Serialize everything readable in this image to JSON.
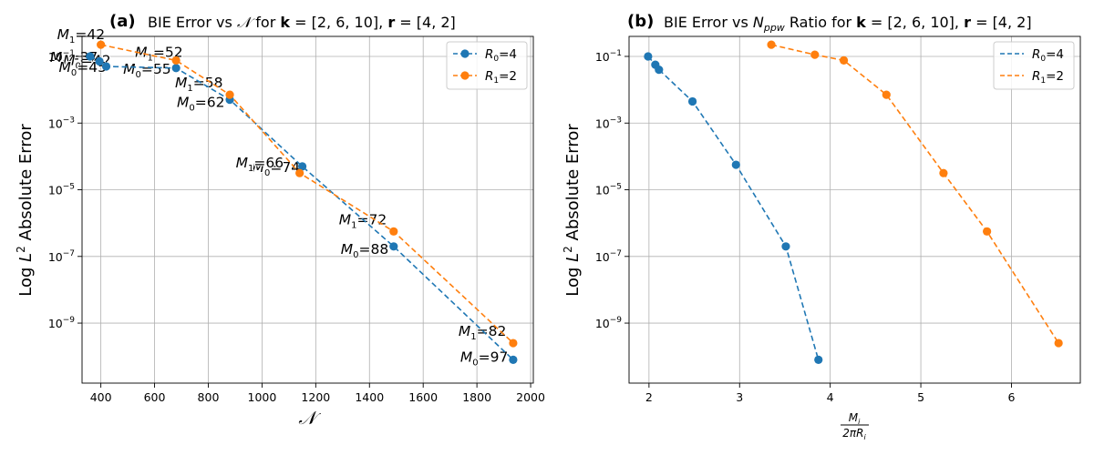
{
  "chart_data": [
    {
      "type": "line",
      "panel": "(a)",
      "title": "BIE Error vs 𝒩 for k = [2, 6, 10], r = [4, 2]",
      "title_parts": {
        "prefix": "BIE Error vs ",
        "symbol": "𝒩",
        "mid1": " for ",
        "k": "k",
        "k_val": " = [2, 6, 10], ",
        "r": "r",
        "r_val": " = [4, 2]"
      },
      "xlabel": "𝒩",
      "ylabel": "Log L² Absolute Error",
      "ylabel_parts": {
        "pre": "Log ",
        "L": "L",
        "sup": "2",
        "post": " Absolute Error"
      },
      "xlim": [
        330,
        2010
      ],
      "ylim_log10": [
        -10.8,
        -0.4
      ],
      "xticks": [
        400,
        600,
        800,
        1000,
        1200,
        1400,
        1600,
        1800,
        2000
      ],
      "xtick_labels": [
        "400",
        "600",
        "800",
        "1000",
        "1200",
        "1400",
        "1600",
        "1800",
        "2000"
      ],
      "yticks_log10": [
        -1,
        -3,
        -5,
        -7,
        -9
      ],
      "ytick_labels": [
        {
          "base": "10",
          "exp": "−1"
        },
        {
          "base": "10",
          "exp": "−3"
        },
        {
          "base": "10",
          "exp": "−5"
        },
        {
          "base": "10",
          "exp": "−7"
        },
        {
          "base": "10",
          "exp": "−9"
        }
      ],
      "grid": true,
      "legend_location": "upper-right",
      "series": [
        {
          "name": "R₀=4",
          "label_parts": {
            "base": "R",
            "sub": "0",
            "rest": "=4"
          },
          "color": "#1f77b4",
          "x": [
            360,
            395,
            420,
            680,
            880,
            1150,
            1490,
            1935
          ],
          "y_log10": [
            -1.0,
            -1.15,
            -1.3,
            -1.35,
            -2.3,
            -4.3,
            -6.7,
            -10.1
          ],
          "annotations": [
            "M₀=37",
            "M₀=42",
            "M₀=45",
            "M₀=55",
            "M₀=62",
            "M₀=74",
            "M₀=88",
            "M₀=97"
          ]
        },
        {
          "name": "R₁=2",
          "label_parts": {
            "base": "R",
            "sub": "1",
            "rest": "=2"
          },
          "color": "#ff7f0e",
          "x": [
            400,
            680,
            880,
            1140,
            1490,
            1935
          ],
          "y_log10": [
            -0.65,
            -1.12,
            -2.15,
            -4.5,
            -6.25,
            -9.6
          ],
          "annotations": [
            "M₁=42",
            "M₁=52",
            "M₁=58",
            "M₁=66",
            "M₁=72",
            "M₁=82"
          ]
        }
      ]
    },
    {
      "type": "line",
      "panel": "(b)",
      "title": "BIE Error vs N_ppw Ratio for k = [2, 6, 10], r = [4, 2]",
      "title_parts": {
        "prefix": "BIE Error vs ",
        "N": "N",
        "sub": "ppw",
        "mid1": " Ratio for ",
        "k": "k",
        "k_val": " = [2, 6, 10], ",
        "r": "r",
        "r_val": " = [4, 2]"
      },
      "xlabel": "M_i / 2πR_i",
      "xlabel_parts": {
        "num": "M",
        "num_sub": "i",
        "den": "2πR",
        "den_sub": "i"
      },
      "ylabel": "Log L² Absolute Error",
      "ylabel_parts": {
        "pre": "Log ",
        "L": "L",
        "sup": "2",
        "post": " Absolute Error"
      },
      "xlim": [
        1.78,
        6.76
      ],
      "ylim_log10": [
        -10.8,
        -0.4
      ],
      "xticks": [
        2,
        3,
        4,
        5,
        6
      ],
      "xtick_labels": [
        "2",
        "3",
        "4",
        "5",
        "6"
      ],
      "yticks_log10": [
        -1,
        -3,
        -5,
        -7,
        -9
      ],
      "ytick_labels": [
        {
          "base": "10",
          "exp": "−1"
        },
        {
          "base": "10",
          "exp": "−3"
        },
        {
          "base": "10",
          "exp": "−5"
        },
        {
          "base": "10",
          "exp": "−7"
        },
        {
          "base": "10",
          "exp": "−9"
        }
      ],
      "grid": true,
      "legend_location": "upper-right",
      "series": [
        {
          "name": "R₀=4",
          "label_parts": {
            "base": "R",
            "sub": "0",
            "rest": "=4"
          },
          "color": "#1f77b4",
          "x": [
            1.99,
            2.07,
            2.11,
            2.48,
            2.96,
            3.51,
            3.87
          ],
          "y_log10": [
            -1.0,
            -1.25,
            -1.4,
            -2.35,
            -4.25,
            -6.7,
            -10.1
          ]
        },
        {
          "name": "R₁=2",
          "label_parts": {
            "base": "R",
            "sub": "1",
            "rest": "=2"
          },
          "color": "#ff7f0e",
          "x": [
            3.35,
            3.83,
            4.15,
            4.62,
            5.25,
            5.73,
            6.52
          ],
          "y_log10": [
            -0.65,
            -0.95,
            -1.12,
            -2.15,
            -4.5,
            -6.25,
            -9.6
          ]
        }
      ]
    }
  ]
}
